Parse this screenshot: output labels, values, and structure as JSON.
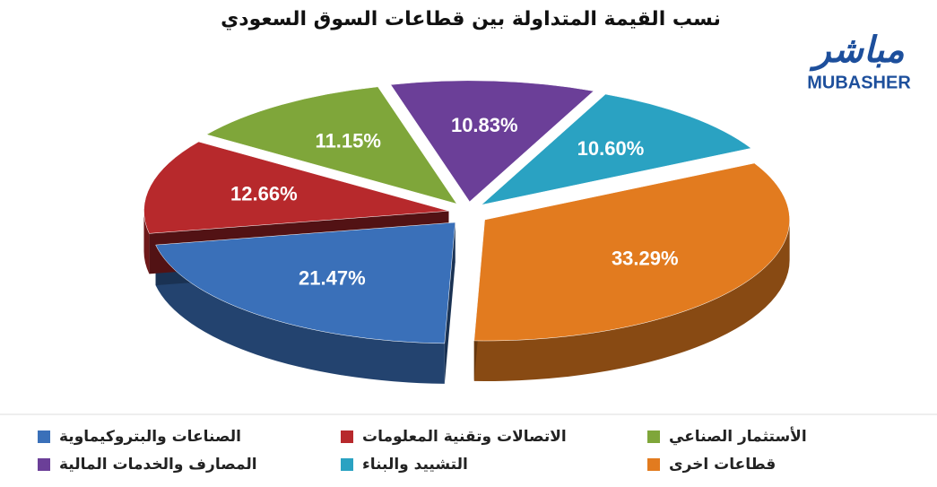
{
  "chart_data": {
    "type": "pie",
    "title": "نسب القيمة المتداولة بين قطاعات السوق السعودي",
    "categories": [
      "الصناعات والبتروكيماوية",
      "الاتصالات وتقنية المعلومات",
      "الأستثمار الصناعي",
      "المصارف والخدمات المالية",
      "التشييد والبناء",
      "قطاعات اخرى"
    ],
    "values": [
      21.47,
      12.66,
      11.15,
      10.83,
      10.6,
      33.29
    ],
    "value_labels": [
      "21.47%",
      "12.66%",
      "11.15%",
      "10.83%",
      "10.60%",
      "33.29%"
    ],
    "colors": [
      "#3a70b9",
      "#b7292c",
      "#7fa63a",
      "#6b3f98",
      "#2aa2c2",
      "#e27b1f"
    ]
  },
  "logo": {
    "arabic": "مباشر",
    "latin": "MUBASHER"
  }
}
